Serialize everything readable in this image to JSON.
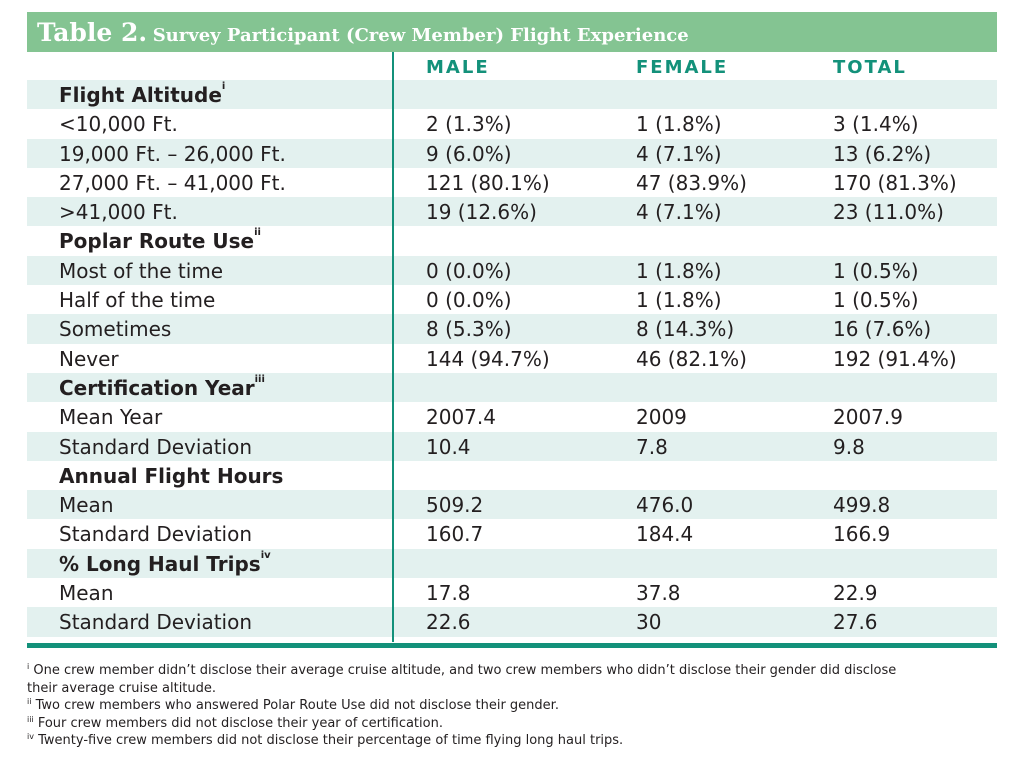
{
  "title": {
    "label": "Table 2.",
    "text": "Survey Participant (Crew Member) Flight Experience"
  },
  "columns": [
    "MALE",
    "FEMALE",
    "TOTAL"
  ],
  "rows": [
    {
      "label": "Flight Altitude",
      "sup": "i",
      "section": true,
      "values": [
        "",
        "",
        ""
      ]
    },
    {
      "label": "<10,000 Ft.",
      "values": [
        "2 (1.3%)",
        "1 (1.8%)",
        "3 (1.4%)"
      ]
    },
    {
      "label": "19,000 Ft. – 26,000 Ft.",
      "values": [
        "9 (6.0%)",
        "4 (7.1%)",
        "13 (6.2%)"
      ]
    },
    {
      "label": "27,000 Ft. – 41,000 Ft.",
      "values": [
        "121 (80.1%)",
        "47 (83.9%)",
        "170 (81.3%)"
      ]
    },
    {
      "label": ">41,000 Ft.",
      "values": [
        "19 (12.6%)",
        "4 (7.1%)",
        "23 (11.0%)"
      ]
    },
    {
      "label": "Poplar Route Use",
      "sup": "ii",
      "section": true,
      "values": [
        "",
        "",
        ""
      ]
    },
    {
      "label": "Most of the time",
      "values": [
        "0 (0.0%)",
        "1 (1.8%)",
        "1 (0.5%)"
      ]
    },
    {
      "label": "Half of the time",
      "values": [
        "0 (0.0%)",
        "1 (1.8%)",
        "1 (0.5%)"
      ]
    },
    {
      "label": "Sometimes",
      "values": [
        "8 (5.3%)",
        "8 (14.3%)",
        "16 (7.6%)"
      ]
    },
    {
      "label": "Never",
      "values": [
        "144 (94.7%)",
        "46 (82.1%)",
        "192 (91.4%)"
      ]
    },
    {
      "label": "Certification Year",
      "sup": "iii",
      "section": true,
      "values": [
        "",
        "",
        ""
      ]
    },
    {
      "label": "Mean Year",
      "values": [
        "2007.4",
        "2009",
        "2007.9"
      ]
    },
    {
      "label": "Standard Deviation",
      "values": [
        "10.4",
        "7.8",
        "9.8"
      ]
    },
    {
      "label": "Annual Flight Hours",
      "sup": "",
      "section": true,
      "values": [
        "",
        "",
        ""
      ]
    },
    {
      "label": "Mean",
      "values": [
        "509.2",
        "476.0",
        "499.8"
      ]
    },
    {
      "label": "Standard Deviation",
      "values": [
        "160.7",
        "184.4",
        "166.9"
      ]
    },
    {
      "label": "% Long Haul Trips",
      "sup": "iv",
      "section": true,
      "values": [
        "",
        "",
        ""
      ]
    },
    {
      "label": "Mean",
      "values": [
        "17.8",
        "37.8",
        "22.9"
      ]
    },
    {
      "label": "Standard Deviation",
      "values": [
        "22.6",
        "30",
        "27.6"
      ]
    }
  ],
  "footnotes": [
    {
      "sup": "i",
      "text": "One crew member didn’t disclose their average cruise altitude, and two crew members who didn’t disclose their gender did disclose their average cruise altitude."
    },
    {
      "sup": "ii",
      "text": "Two crew members who answered Polar Route Use did not disclose their gender."
    },
    {
      "sup": "iii",
      "text": "Four crew members did not disclose their year of certification."
    },
    {
      "sup": "iv",
      "text": "Twenty-five crew members did not disclose their percentage of time flying long haul trips."
    }
  ],
  "colors": {
    "title_bg": "#84c492",
    "accent": "#13917a",
    "row_shade": "#e3f1ef"
  }
}
